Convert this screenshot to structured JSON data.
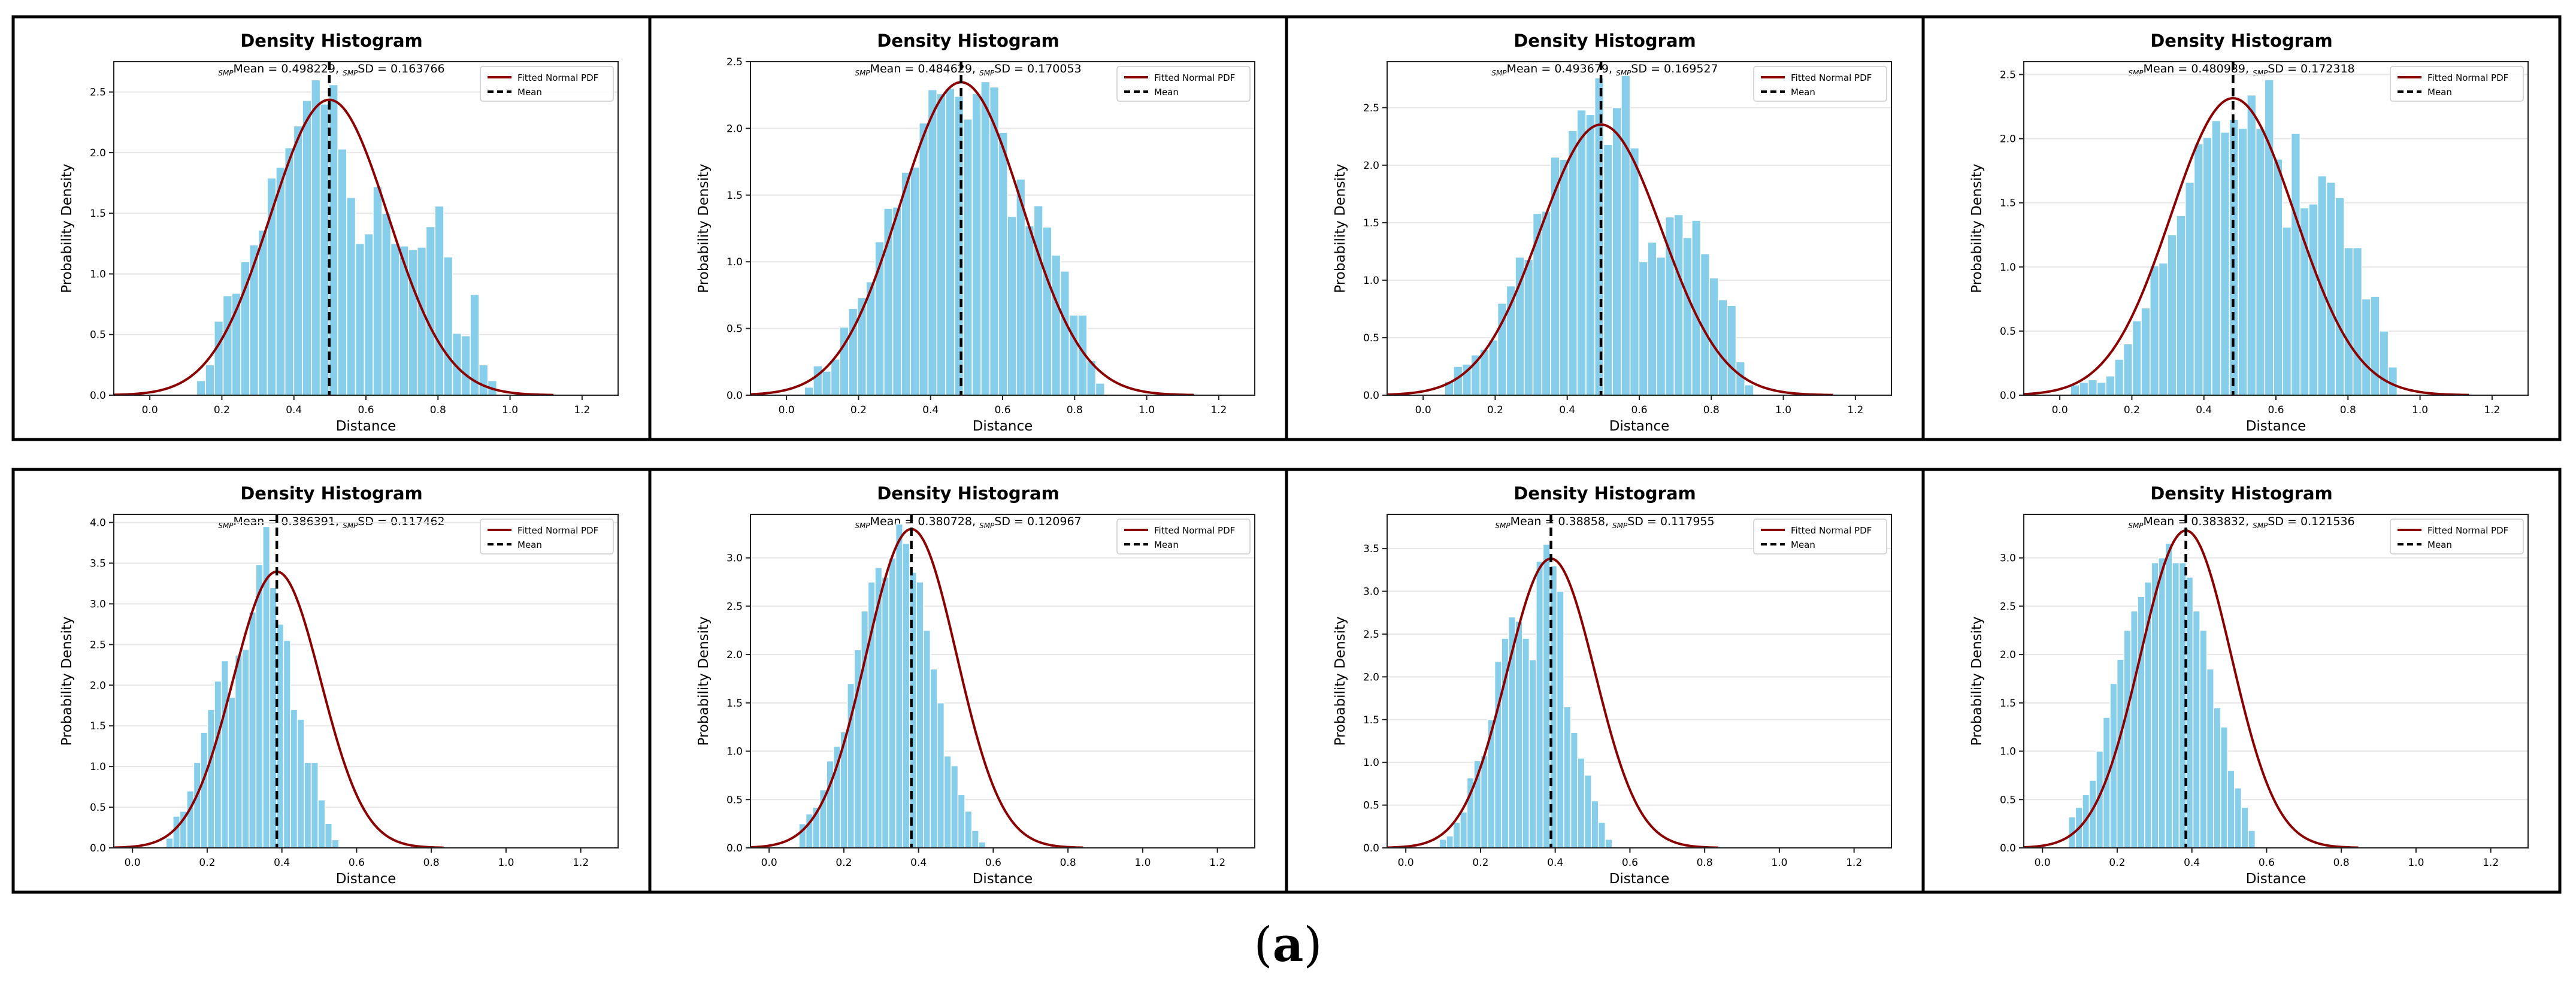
{
  "figure_label": "a",
  "colors": {
    "bar": "#87ceeb",
    "pdf": "#8b0000",
    "mean": "#000000",
    "grid": "#e6e6e6",
    "frame": "#000000"
  },
  "chart_data": [
    {
      "type": "bar",
      "title": "Density Histogram",
      "subtitle_prefix": "SMP",
      "mean_label": "Mean = 0.498229",
      "sd_label": "SD = 0.163766",
      "mean": 0.498229,
      "sd": 0.163766,
      "xlabel": "Distance",
      "ylabel": "Probability Density",
      "xlim": [
        -0.1,
        1.3
      ],
      "ylim": [
        0,
        2.75
      ],
      "xticks": [
        0.0,
        0.2,
        0.4,
        0.6,
        0.8,
        1.0,
        1.2
      ],
      "yticks": [
        0.0,
        0.5,
        1.0,
        1.5,
        2.0,
        2.5
      ],
      "legend": [
        "Fitted Normal PDF",
        "Mean"
      ],
      "legend_position": "top-right",
      "bin_start": 0.13,
      "bin_width": 0.0245,
      "values": [
        0.12,
        0.25,
        0.61,
        0.82,
        0.84,
        1.1,
        1.24,
        1.36,
        1.79,
        1.88,
        2.04,
        2.22,
        2.43,
        2.6,
        2.4,
        2.56,
        2.03,
        1.63,
        1.25,
        1.33,
        1.72,
        1.5,
        1.25,
        1.23,
        1.2,
        1.22,
        1.39,
        1.56,
        1.14,
        0.51,
        0.49,
        0.83,
        0.25,
        0.12
      ]
    },
    {
      "type": "bar",
      "title": "Density Histogram",
      "subtitle_prefix": "SMP",
      "mean_label": "Mean = 0.484629",
      "sd_label": "SD = 0.170053",
      "mean": 0.484629,
      "sd": 0.170053,
      "xlabel": "Distance",
      "ylabel": "Probability Density",
      "xlim": [
        -0.1,
        1.3
      ],
      "ylim": [
        0,
        2.5
      ],
      "xticks": [
        0.0,
        0.2,
        0.4,
        0.6,
        0.8,
        1.0,
        1.2
      ],
      "yticks": [
        0.0,
        0.5,
        1.0,
        1.5,
        2.0,
        2.5
      ],
      "legend": [
        "Fitted Normal PDF",
        "Mean"
      ],
      "legend_position": "top-right",
      "bin_start": 0.05,
      "bin_width": 0.0245,
      "values": [
        0.06,
        0.22,
        0.18,
        0.27,
        0.51,
        0.65,
        0.73,
        0.85,
        1.15,
        1.4,
        1.41,
        1.67,
        1.71,
        2.04,
        2.29,
        2.26,
        2.3,
        2.24,
        2.07,
        2.26,
        2.35,
        2.31,
        1.97,
        1.34,
        1.62,
        1.27,
        1.42,
        1.26,
        1.05,
        0.93,
        0.6,
        0.6,
        0.26,
        0.09
      ]
    },
    {
      "type": "bar",
      "title": "Density Histogram",
      "subtitle_prefix": "SMP",
      "mean_label": "Mean = 0.493679",
      "sd_label": "SD = 0.169527",
      "mean": 0.493679,
      "sd": 0.169527,
      "xlabel": "Distance",
      "ylabel": "Probability Density",
      "xlim": [
        -0.1,
        1.3
      ],
      "ylim": [
        0,
        2.9
      ],
      "xticks": [
        0.0,
        0.2,
        0.4,
        0.6,
        0.8,
        1.0,
        1.2
      ],
      "yticks": [
        0.0,
        0.5,
        1.0,
        1.5,
        2.0,
        2.5
      ],
      "legend": [
        "Fitted Normal PDF",
        "Mean"
      ],
      "legend_position": "top-right",
      "bin_start": 0.06,
      "bin_width": 0.0245,
      "values": [
        0.12,
        0.25,
        0.27,
        0.35,
        0.4,
        0.48,
        0.8,
        0.95,
        1.2,
        1.18,
        1.58,
        1.6,
        2.07,
        2.05,
        2.3,
        2.48,
        2.44,
        2.76,
        2.18,
        2.5,
        2.78,
        2.15,
        1.16,
        1.33,
        1.2,
        1.55,
        1.57,
        1.37,
        1.52,
        1.23,
        1.02,
        0.83,
        0.78,
        0.29,
        0.09
      ]
    },
    {
      "type": "bar",
      "title": "Density Histogram",
      "subtitle_prefix": "SMP",
      "mean_label": "Mean = 0.480989",
      "sd_label": "SD = 0.172318",
      "mean": 0.480989,
      "sd": 0.172318,
      "xlabel": "Distance",
      "ylabel": "Probability Density",
      "xlim": [
        -0.1,
        1.3
      ],
      "ylim": [
        0,
        2.6
      ],
      "xticks": [
        0.0,
        0.2,
        0.4,
        0.6,
        0.8,
        1.0,
        1.2
      ],
      "yticks": [
        0.0,
        0.5,
        1.0,
        1.5,
        2.0,
        2.5
      ],
      "legend": [
        "Fitted Normal PDF",
        "Mean"
      ],
      "legend_position": "top-right",
      "bin_start": 0.03,
      "bin_width": 0.0245,
      "values": [
        0.08,
        0.1,
        0.12,
        0.1,
        0.15,
        0.28,
        0.4,
        0.58,
        0.68,
        1.01,
        1.03,
        1.25,
        1.4,
        1.66,
        1.96,
        2.01,
        2.14,
        2.05,
        2.15,
        2.08,
        2.34,
        2.08,
        2.46,
        1.84,
        1.31,
        2.04,
        1.46,
        1.49,
        1.71,
        1.66,
        1.54,
        1.15,
        1.15,
        0.75,
        0.77,
        0.5,
        0.22
      ]
    },
    {
      "type": "bar",
      "title": "Density Histogram",
      "subtitle_prefix": "SMP",
      "mean_label": "Mean = 0.386391",
      "sd_label": "SD = 0.117462",
      "mean": 0.386391,
      "sd": 0.117462,
      "xlabel": "Distance",
      "ylabel": "Probability Density",
      "xlim": [
        -0.05,
        1.3
      ],
      "ylim": [
        0,
        4.1
      ],
      "xticks": [
        0.0,
        0.2,
        0.4,
        0.6,
        0.8,
        1.0,
        1.2
      ],
      "yticks": [
        0.0,
        0.5,
        1.0,
        1.5,
        2.0,
        2.5,
        3.0,
        3.5,
        4.0
      ],
      "legend": [
        "Fitted Normal PDF",
        "Mean"
      ],
      "legend_position": "top-right",
      "bin_start": 0.09,
      "bin_width": 0.0185,
      "values": [
        0.12,
        0.39,
        0.45,
        0.7,
        1.05,
        1.42,
        1.7,
        2.05,
        2.3,
        1.85,
        2.37,
        2.44,
        2.9,
        3.48,
        3.95,
        3.2,
        2.75,
        2.55,
        1.7,
        1.58,
        1.05,
        1.05,
        0.59,
        0.3,
        0.1
      ]
    },
    {
      "type": "bar",
      "title": "Density Histogram",
      "subtitle_prefix": "SMP",
      "mean_label": "Mean = 0.380728",
      "sd_label": "SD = 0.120967",
      "mean": 0.380728,
      "sd": 0.120967,
      "xlabel": "Distance",
      "ylabel": "Probability Density",
      "xlim": [
        -0.05,
        1.3
      ],
      "ylim": [
        0,
        3.45
      ],
      "xticks": [
        0.0,
        0.2,
        0.4,
        0.6,
        0.8,
        1.0,
        1.2
      ],
      "yticks": [
        0.0,
        0.5,
        1.0,
        1.5,
        2.0,
        2.5,
        3.0
      ],
      "legend": [
        "Fitted Normal PDF",
        "Mean"
      ],
      "legend_position": "top-right",
      "bin_start": 0.08,
      "bin_width": 0.0185,
      "values": [
        0.25,
        0.35,
        0.42,
        0.6,
        0.9,
        1.05,
        1.2,
        1.7,
        2.05,
        2.45,
        2.75,
        2.9,
        2.8,
        3.0,
        3.35,
        3.15,
        2.85,
        2.75,
        2.25,
        1.85,
        1.5,
        0.95,
        0.85,
        0.55,
        0.38,
        0.18,
        0.06
      ]
    },
    {
      "type": "bar",
      "title": "Density Histogram",
      "subtitle_prefix": "SMP",
      "mean_label": "Mean = 0.38858",
      "sd_label": "SD = 0.117955",
      "mean": 0.38858,
      "sd": 0.117955,
      "xlabel": "Distance",
      "ylabel": "Probability Density",
      "xlim": [
        -0.05,
        1.3
      ],
      "ylim": [
        0,
        3.9
      ],
      "xticks": [
        0.0,
        0.2,
        0.4,
        0.6,
        0.8,
        1.0,
        1.2
      ],
      "yticks": [
        0.0,
        0.5,
        1.0,
        1.5,
        2.0,
        2.5,
        3.0,
        3.5
      ],
      "legend": [
        "Fitted Normal PDF",
        "Mean"
      ],
      "legend_position": "top-right",
      "bin_start": 0.09,
      "bin_width": 0.0185,
      "values": [
        0.1,
        0.14,
        0.3,
        0.42,
        0.82,
        1.02,
        1.08,
        1.5,
        2.18,
        2.45,
        2.7,
        2.65,
        2.45,
        2.2,
        3.35,
        3.55,
        3.3,
        3.0,
        1.65,
        1.35,
        1.05,
        0.85,
        0.55,
        0.3,
        0.1
      ]
    },
    {
      "type": "bar",
      "title": "Density Histogram",
      "subtitle_prefix": "SMP",
      "mean_label": "Mean = 0.383832",
      "sd_label": "SD = 0.121536",
      "mean": 0.383832,
      "sd": 0.121536,
      "xlabel": "Distance",
      "ylabel": "Probability Density",
      "xlim": [
        -0.05,
        1.3
      ],
      "ylim": [
        0,
        3.45
      ],
      "xticks": [
        0.0,
        0.2,
        0.4,
        0.6,
        0.8,
        1.0,
        1.2
      ],
      "yticks": [
        0.0,
        0.5,
        1.0,
        1.5,
        2.0,
        2.5,
        3.0
      ],
      "legend": [
        "Fitted Normal PDF",
        "Mean"
      ],
      "legend_position": "top-right",
      "bin_start": 0.07,
      "bin_width": 0.0185,
      "values": [
        0.32,
        0.42,
        0.55,
        0.7,
        1.0,
        1.35,
        1.7,
        1.95,
        2.25,
        2.45,
        2.6,
        2.75,
        2.95,
        3.0,
        3.15,
        2.95,
        2.95,
        2.8,
        2.45,
        2.25,
        1.85,
        1.45,
        1.25,
        0.8,
        0.62,
        0.42,
        0.18
      ]
    }
  ]
}
